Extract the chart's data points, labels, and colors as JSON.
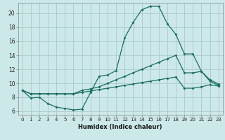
{
  "xlabel": "Humidex (Indice chaleur)",
  "bg_color": "#cce8e8",
  "grid_color": "#aacaca",
  "line_color": "#1a6e5e",
  "xlim": [
    -0.5,
    23.5
  ],
  "ylim": [
    5.5,
    21.5
  ],
  "xticks": [
    0,
    1,
    2,
    3,
    4,
    5,
    6,
    7,
    8,
    9,
    10,
    11,
    12,
    13,
    14,
    15,
    16,
    17,
    18,
    19,
    20,
    21,
    22,
    23
  ],
  "yticks": [
    6,
    8,
    10,
    12,
    14,
    16,
    18,
    20
  ],
  "line1_x": [
    0,
    1,
    2,
    3,
    4,
    5,
    6,
    7,
    8,
    9,
    10,
    11,
    12,
    13,
    14,
    15,
    16,
    17,
    18,
    19,
    20,
    21,
    22,
    23
  ],
  "line1_y": [
    9.0,
    7.9,
    8.0,
    7.1,
    6.6,
    6.4,
    6.2,
    6.3,
    8.7,
    11.0,
    11.2,
    11.8,
    16.5,
    18.7,
    20.5,
    21.0,
    21.0,
    18.5,
    17.0,
    14.2,
    14.2,
    11.7,
    10.3,
    9.7
  ],
  "line2_x": [
    0,
    1,
    2,
    3,
    4,
    5,
    6,
    7,
    8,
    9,
    10,
    11,
    12,
    13,
    14,
    15,
    16,
    17,
    18,
    19,
    20,
    21,
    22,
    23
  ],
  "line2_y": [
    9.0,
    8.5,
    8.5,
    8.5,
    8.5,
    8.5,
    8.5,
    9.0,
    9.2,
    9.5,
    10.0,
    10.5,
    11.0,
    11.5,
    12.0,
    12.5,
    13.0,
    13.5,
    14.0,
    11.5,
    11.5,
    11.7,
    10.5,
    9.9
  ],
  "line3_x": [
    0,
    1,
    2,
    3,
    4,
    5,
    6,
    7,
    8,
    9,
    10,
    11,
    12,
    13,
    14,
    15,
    16,
    17,
    18,
    19,
    20,
    21,
    22,
    23
  ],
  "line3_y": [
    9.0,
    8.5,
    8.5,
    8.5,
    8.5,
    8.5,
    8.5,
    8.7,
    8.9,
    9.1,
    9.3,
    9.5,
    9.7,
    9.9,
    10.1,
    10.3,
    10.5,
    10.7,
    10.9,
    9.3,
    9.3,
    9.5,
    9.8,
    9.6
  ]
}
